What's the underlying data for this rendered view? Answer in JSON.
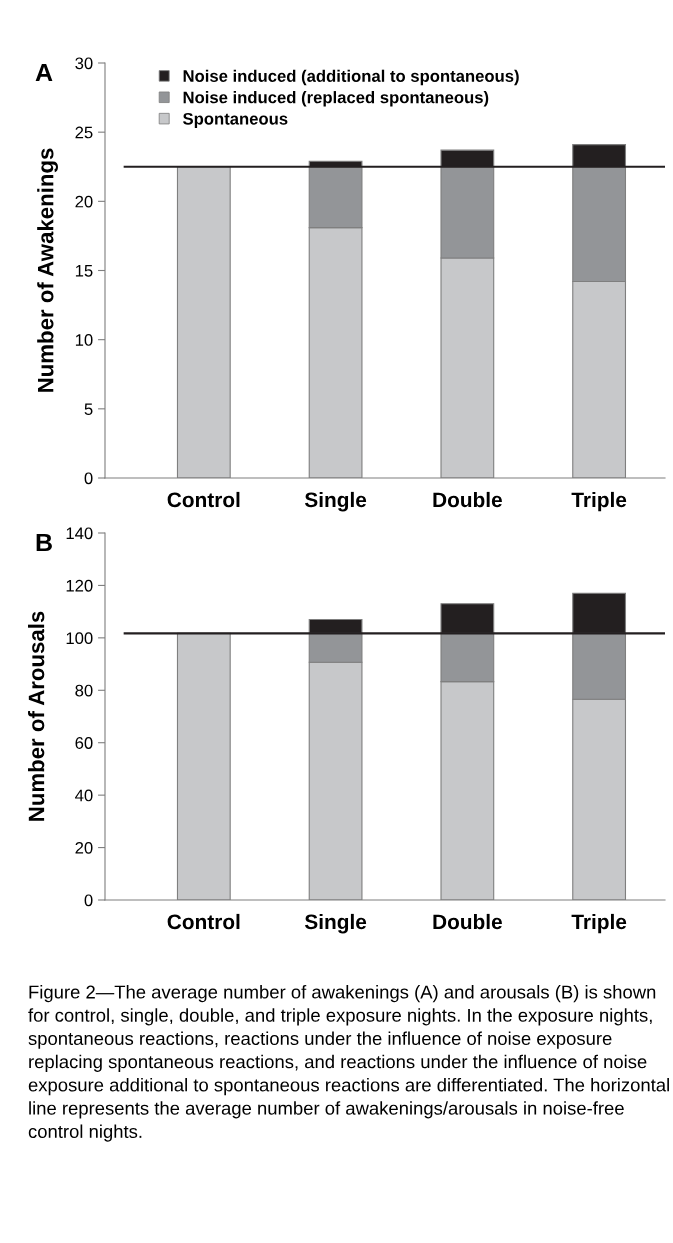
{
  "chart_data": [
    {
      "type": "bar",
      "title": "A",
      "ylabel": "Number of Awakenings",
      "categories": [
        "Control",
        "Single",
        "Double",
        "Triple"
      ],
      "stacked": true,
      "ylim": [
        0,
        30
      ],
      "yticks": [
        0,
        5,
        10,
        15,
        20,
        25,
        30
      ],
      "grid": false,
      "legend": "top left",
      "series": [
        {
          "name": "Spontaneous",
          "color": "#c7c8ca",
          "values": [
            22.5,
            18.1,
            15.9,
            14.2
          ]
        },
        {
          "name": "Noise induced (replaced spontaneous)",
          "color": "#939598",
          "values": [
            0,
            4.4,
            6.6,
            8.3
          ]
        },
        {
          "name": "Noise induced (additional to spontaneous)",
          "color": "#231f20",
          "values": [
            0,
            0.4,
            1.2,
            1.6
          ]
        }
      ],
      "ref_lines": [
        {
          "axis": "y",
          "value": 22.5,
          "color": "#231f20"
        }
      ]
    },
    {
      "type": "bar",
      "title": "B",
      "ylabel": "Number of Arousals",
      "categories": [
        "Control",
        "Single",
        "Double",
        "Triple"
      ],
      "stacked": true,
      "ylim": [
        0,
        140
      ],
      "yticks": [
        0,
        20,
        40,
        60,
        80,
        100,
        120,
        140
      ],
      "grid": false,
      "series": [
        {
          "color": "#c7c8ca",
          "values": [
            101.7,
            90.7,
            83.3,
            76.6
          ]
        },
        {
          "color": "#939598",
          "values": [
            0,
            11.0,
            18.4,
            25.1
          ]
        },
        {
          "color": "#231f20",
          "values": [
            0,
            5.3,
            11.3,
            15.3
          ]
        }
      ],
      "ref_lines": [
        {
          "axis": "y",
          "value": 101.7,
          "color": "#231f20"
        }
      ],
      "annotations": [
        "Figure 2—The average number of awakenings (A) and arousals (B) is shown for control, single, double, and triple exposure nights. In the exposure nights, spontaneous reactions, reactions under the influence of noise exposure replacing spontaneous reactions, and reactions under the influence of noise exposure additional to spontaneous reactions are differentiated. The horizontal line represents the average number of awakenings/arousals in noise-free control nights."
      ]
    }
  ]
}
